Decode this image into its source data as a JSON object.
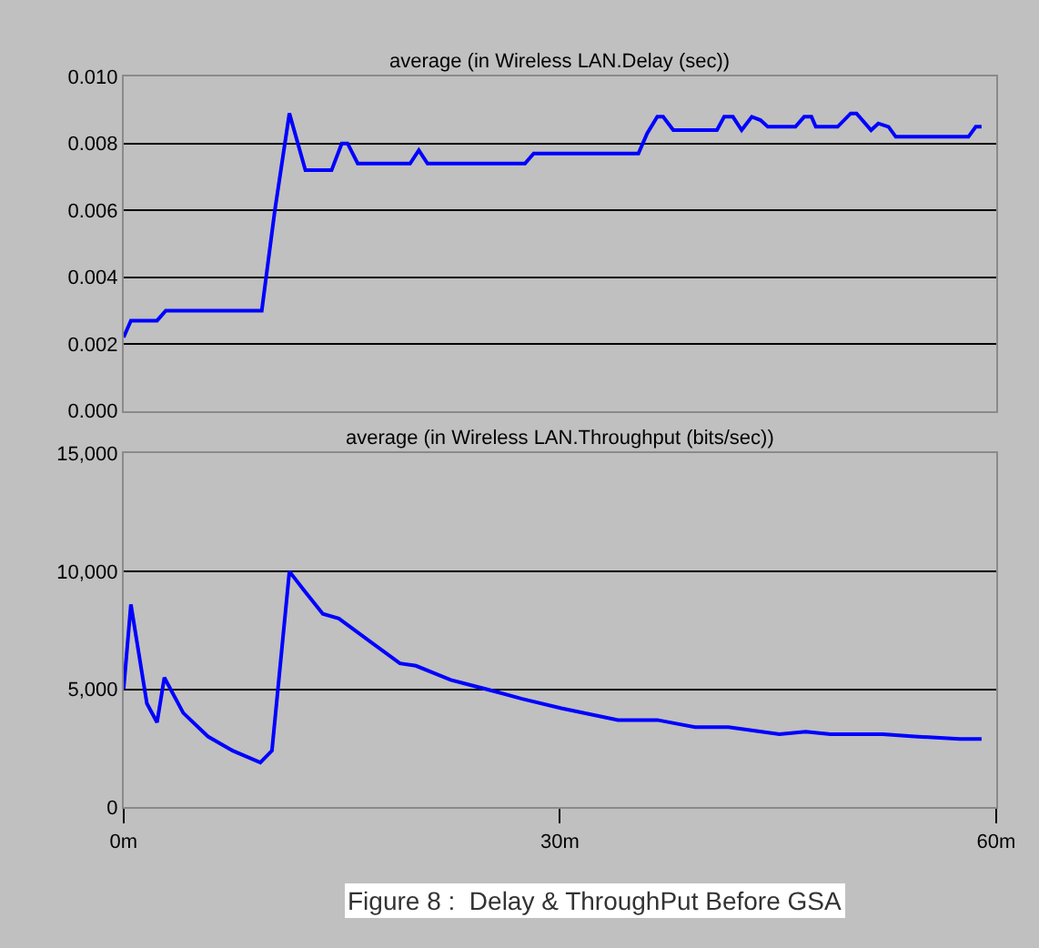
{
  "chart_data": [
    {
      "type": "line",
      "title": "average (in Wireless LAN.Delay (sec))",
      "tick_labels": "y",
      "grid": "y",
      "xlim": [
        0,
        60
      ],
      "ylim": [
        0,
        0.01
      ],
      "yticks": [
        {
          "value": 0,
          "label": "0.000"
        },
        {
          "value": 0.002,
          "label": "0.002"
        },
        {
          "value": 0.004,
          "label": "0.004"
        },
        {
          "value": 0.006,
          "label": "0.006"
        },
        {
          "value": 0.008,
          "label": "0.008"
        },
        {
          "value": 0.01,
          "label": "0.010"
        }
      ],
      "series": [
        {
          "color": "#0000ff",
          "x": [
            0,
            0.5,
            2.3,
            2.9,
            9.5,
            10.4,
            11.4,
            12.5,
            14.3,
            15.0,
            15.4,
            16.1,
            19.7,
            20.3,
            20.9,
            27.6,
            28.2,
            35.4,
            36.0,
            36.7,
            37.1,
            37.8,
            40.8,
            41.3,
            41.9,
            42.5,
            43.2,
            43.8,
            44.3,
            46.2,
            46.8,
            47.3,
            47.6,
            49.1,
            50.0,
            50.4,
            51.4,
            51.9,
            52.6,
            53.1,
            58.1,
            58.6,
            59.0
          ],
          "values": [
            0.0022,
            0.0027,
            0.0027,
            0.003,
            0.003,
            0.006,
            0.0089,
            0.0072,
            0.0072,
            0.008,
            0.008,
            0.0074,
            0.0074,
            0.0078,
            0.0074,
            0.0074,
            0.0077,
            0.0077,
            0.0083,
            0.0088,
            0.0088,
            0.0084,
            0.0084,
            0.0088,
            0.0088,
            0.0084,
            0.0088,
            0.0087,
            0.0085,
            0.0085,
            0.0088,
            0.0088,
            0.0085,
            0.0085,
            0.0089,
            0.0089,
            0.0084,
            0.0086,
            0.0085,
            0.0082,
            0.0082,
            0.0085,
            0.0085
          ]
        }
      ]
    },
    {
      "type": "line",
      "title": "average (in Wireless LAN.Throughput (bits/sec))",
      "grid": "y",
      "xlim": [
        0,
        60
      ],
      "ylim": [
        0,
        15000
      ],
      "xticks": [
        {
          "value": 0,
          "label": "0m"
        },
        {
          "value": 30,
          "label": "30m"
        },
        {
          "value": 60,
          "label": "60m"
        }
      ],
      "yticks": [
        {
          "value": 0,
          "label": "0"
        },
        {
          "value": 5000,
          "label": "5,000"
        },
        {
          "value": 10000,
          "label": "10,000"
        },
        {
          "value": 15000,
          "label": "15,000"
        }
      ],
      "annotations": [
        "Figure 8 :  Delay & ThroughPut Before GSA"
      ],
      "series": [
        {
          "color": "#0000ff",
          "x": [
            0,
            0.5,
            1.6,
            2.3,
            2.8,
            4.1,
            5.8,
            7.5,
            9.4,
            10.2,
            11.4,
            12.4,
            13.7,
            14.8,
            16.8,
            19.0,
            20.1,
            22.5,
            25.0,
            27.4,
            30.1,
            34.0,
            36.7,
            39.3,
            41.6,
            45.1,
            46.9,
            48.6,
            52.2,
            54.4,
            57.5,
            59.0
          ],
          "values": [
            5000,
            8600,
            4400,
            3600,
            5500,
            4000,
            3000,
            2400,
            1900,
            2400,
            10000,
            9200,
            8200,
            8000,
            7100,
            6100,
            6000,
            5400,
            5000,
            4600,
            4200,
            3700,
            3700,
            3400,
            3400,
            3100,
            3200,
            3100,
            3100,
            3000,
            2900,
            2900
          ]
        }
      ]
    }
  ]
}
